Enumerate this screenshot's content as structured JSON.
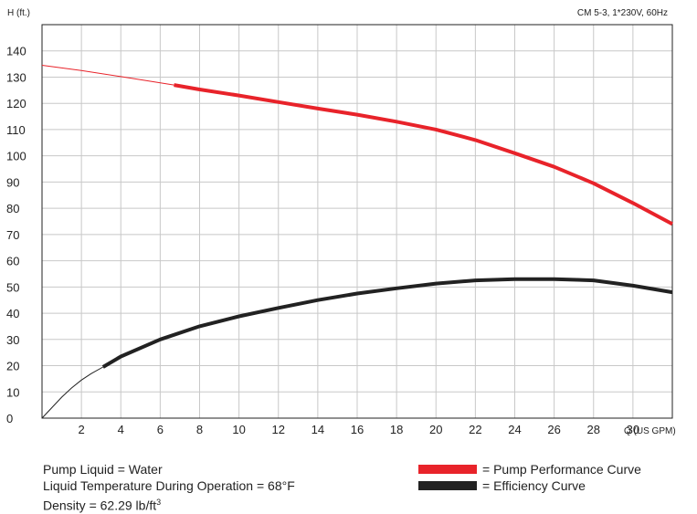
{
  "chart_data": {
    "type": "line",
    "title_left": "H (ft.)",
    "title_right": "CM 5-3, 1*230V, 60Hz",
    "xlabel": "Q (US GPM)",
    "ylabel": "H (ft.)",
    "xlim": [
      0,
      32
    ],
    "ylim": [
      0,
      150
    ],
    "grid": true,
    "x_ticks": [
      "2",
      "4",
      "6",
      "8",
      "10",
      "12",
      "14",
      "16",
      "18",
      "20",
      "22",
      "24",
      "26",
      "28",
      "30"
    ],
    "x_tick_values": [
      2,
      4,
      6,
      8,
      10,
      12,
      14,
      16,
      18,
      20,
      22,
      24,
      26,
      28,
      30
    ],
    "y_ticks": [
      "0",
      "10",
      "20",
      "30",
      "40",
      "50",
      "60",
      "70",
      "80",
      "90",
      "100",
      "110",
      "120",
      "130",
      "140"
    ],
    "y_tick_values": [
      0,
      10,
      20,
      30,
      40,
      50,
      60,
      70,
      80,
      90,
      100,
      110,
      120,
      130,
      140
    ],
    "series": [
      {
        "name": "Pump Performance Curve",
        "color": "#e8232a",
        "extension": {
          "x": [
            0,
            2,
            4,
            6.7
          ],
          "y": [
            134.5,
            132.5,
            130.2,
            127
          ]
        },
        "x": [
          6.7,
          8,
          10,
          12,
          14,
          16,
          18,
          20,
          22,
          24,
          26,
          28,
          30,
          32
        ],
        "y": [
          127,
          125.3,
          123,
          120.5,
          118,
          115.7,
          113,
          110,
          106,
          101,
          95.8,
          89.5,
          82,
          74
        ]
      },
      {
        "name": "Efficiency Curve",
        "color": "#222222",
        "extension": {
          "x": [
            0,
            0.5,
            1,
            1.5,
            2,
            2.5,
            3.1
          ],
          "y": [
            0,
            4,
            8,
            11.5,
            14.5,
            17,
            19.5
          ]
        },
        "x": [
          3.1,
          4,
          6,
          8,
          10,
          12,
          14,
          16,
          18,
          20,
          22,
          24,
          26,
          28,
          30,
          32
        ],
        "y": [
          19.5,
          23.5,
          30,
          35,
          38.8,
          42,
          45,
          47.5,
          49.5,
          51.3,
          52.5,
          53,
          53,
          52.5,
          50.5,
          48
        ]
      }
    ]
  },
  "info": {
    "line1": "Pump Liquid = Water",
    "line2": "Liquid Temperature During Operation = 68°F",
    "line3_main": "Density = 62.29 lb/ft",
    "line3_sup": "3"
  },
  "legend": {
    "performance_label": "= Pump Performance Curve",
    "efficiency_label": "= Efficiency Curve",
    "performance_color": "#e8232a",
    "efficiency_color": "#222222"
  }
}
